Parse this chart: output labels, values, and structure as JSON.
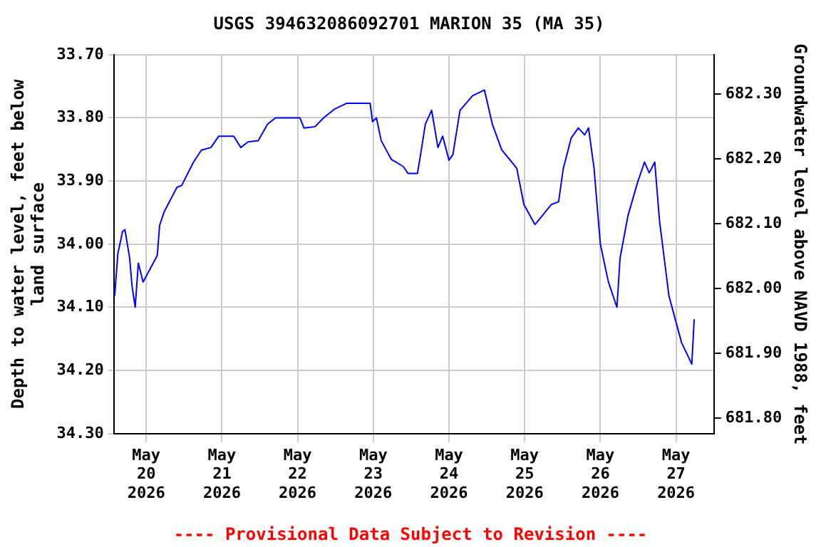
{
  "chart_data": {
    "type": "line",
    "title": "USGS 394632086092701 MARION 35 (MA 35)",
    "ylabel": "Depth to water level, feet below land surface",
    "y2label": "Groundwater level above NAVD 1988, feet",
    "annotations": [
      "---- Provisional Data Subject to Revision ----"
    ],
    "x": [
      "2026-05-19T14:00",
      "2026-05-19T15:00",
      "2026-05-19T16:30",
      "2026-05-19T17:15",
      "2026-05-19T18:45",
      "2026-05-19T19:30",
      "2026-05-19T20:30",
      "2026-05-19T21:30",
      "2026-05-19T23:00",
      "2026-05-20T03:30",
      "2026-05-20T04:15",
      "2026-05-20T05:45",
      "2026-05-20T09:45",
      "2026-05-20T11:15",
      "2026-05-20T15:00",
      "2026-05-20T17:30",
      "2026-05-20T20:30",
      "2026-05-20T23:00",
      "2026-05-21T03:45",
      "2026-05-21T06:00",
      "2026-05-21T08:15",
      "2026-05-21T11:30",
      "2026-05-21T14:30",
      "2026-05-21T17:00",
      "2026-05-22T00:45",
      "2026-05-22T02:00",
      "2026-05-22T05:30",
      "2026-05-22T08:15",
      "2026-05-22T11:45",
      "2026-05-22T15:30",
      "2026-05-22T23:00",
      "2026-05-22T23:45",
      "2026-05-23T01:00",
      "2026-05-23T02:30",
      "2026-05-23T05:45",
      "2026-05-23T09:30",
      "2026-05-23T11:00",
      "2026-05-23T14:00",
      "2026-05-23T15:00",
      "2026-05-23T16:30",
      "2026-05-23T18:30",
      "2026-05-23T20:30",
      "2026-05-23T22:00",
      "2026-05-24T00:00",
      "2026-05-24T01:15",
      "2026-05-24T03:30",
      "2026-05-24T07:30",
      "2026-05-24T11:15",
      "2026-05-24T13:45",
      "2026-05-24T16:45",
      "2026-05-24T19:15",
      "2026-05-24T21:30",
      "2026-05-24T23:45",
      "2026-05-25T03:15",
      "2026-05-25T05:15",
      "2026-05-25T08:30",
      "2026-05-25T10:45",
      "2026-05-25T12:15",
      "2026-05-25T14:45",
      "2026-05-25T17:00",
      "2026-05-25T19:00",
      "2026-05-25T20:15",
      "2026-05-25T22:00",
      "2026-05-26T00:00",
      "2026-05-26T02:30",
      "2026-05-26T05:15",
      "2026-05-26T06:15",
      "2026-05-26T08:45",
      "2026-05-26T11:45",
      "2026-05-26T14:00",
      "2026-05-26T15:30",
      "2026-05-26T17:15",
      "2026-05-26T18:45",
      "2026-05-26T21:45",
      "2026-05-27T01:45",
      "2026-05-27T05:00",
      "2026-05-27T05:45"
    ],
    "series": [
      {
        "color": "#0000ff",
        "values": [
          34.082,
          34.015,
          33.98,
          33.977,
          34.022,
          34.066,
          34.1,
          34.03,
          34.06,
          34.018,
          33.97,
          33.948,
          33.91,
          33.907,
          33.87,
          33.851,
          33.847,
          33.829,
          33.829,
          33.847,
          33.838,
          33.836,
          33.81,
          33.8,
          33.8,
          33.816,
          33.814,
          33.8,
          33.786,
          33.777,
          33.777,
          33.806,
          33.8,
          33.836,
          33.866,
          33.877,
          33.888,
          33.888,
          33.858,
          33.81,
          33.788,
          33.847,
          33.829,
          33.867,
          33.858,
          33.788,
          33.765,
          33.756,
          33.81,
          33.851,
          33.866,
          33.88,
          33.937,
          33.969,
          33.957,
          33.937,
          33.933,
          33.88,
          33.832,
          33.816,
          33.827,
          33.816,
          33.88,
          34.0,
          34.059,
          34.1,
          34.022,
          33.955,
          33.903,
          33.87,
          33.887,
          33.87,
          33.963,
          34.082,
          34.156,
          34.19,
          34.119
        ]
      }
    ],
    "xlim": [
      "2026-05-19T13:45",
      "2026-05-27T12:00"
    ],
    "xticks": [
      {
        "value": "2026-05-20",
        "label": "May 20 2026"
      },
      {
        "value": "2026-05-21",
        "label": "May 21 2026"
      },
      {
        "value": "2026-05-22",
        "label": "May 22 2026"
      },
      {
        "value": "2026-05-23",
        "label": "May 23 2026"
      },
      {
        "value": "2026-05-24",
        "label": "May 24 2026"
      },
      {
        "value": "2026-05-25",
        "label": "May 25 2026"
      },
      {
        "value": "2026-05-26",
        "label": "May 26 2026"
      },
      {
        "value": "2026-05-27",
        "label": "May 27 2026"
      }
    ],
    "ylim": [
      34.3,
      33.7
    ],
    "yticks": [
      {
        "value": 33.7,
        "label": "33.70"
      },
      {
        "value": 33.8,
        "label": "33.80"
      },
      {
        "value": 33.9,
        "label": "33.90"
      },
      {
        "value": 34.0,
        "label": "34.00"
      },
      {
        "value": 34.1,
        "label": "34.10"
      },
      {
        "value": 34.2,
        "label": "34.20"
      },
      {
        "value": 34.3,
        "label": "34.30"
      }
    ],
    "y2lim": [
      681.776,
      682.361
    ],
    "y2ticks": [
      {
        "value": 681.8,
        "label": "681.80"
      },
      {
        "value": 681.9,
        "label": "681.90"
      },
      {
        "value": 682.0,
        "label": "682.00"
      },
      {
        "value": 682.1,
        "label": "682.10"
      },
      {
        "value": 682.2,
        "label": "682.20"
      },
      {
        "value": 682.3,
        "label": "682.30"
      }
    ],
    "grid": true,
    "legend": false,
    "marker": "none",
    "line_style": "solid"
  }
}
